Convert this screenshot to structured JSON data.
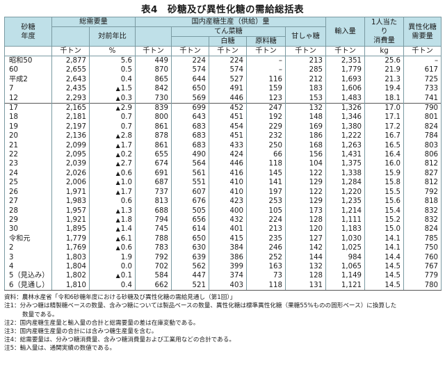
{
  "title": "表4　砂糖及び異性化糖の需給総括表",
  "headers": {
    "year": "砂糖\n年度",
    "demand": "総需要量",
    "yoy": "対前年比",
    "domestic": "国内産糖生産（供給）量",
    "beet": "てん菜糖",
    "white": "白糖",
    "raw": "原料糖",
    "cane": "甘しゃ糖",
    "imports": "輸入量",
    "percap": "1人当たり\n消費量",
    "hfcs": "異性化糖\n需要量"
  },
  "units": [
    "千トン",
    "%",
    "千トン",
    "千トン",
    "千トン",
    "千トン",
    "千トン",
    "千トン",
    "kg",
    "千トン"
  ],
  "group1": [
    {
      "year": "昭和50",
      "demand": "2,877",
      "yoy_neg": false,
      "yoy": "5.6",
      "domestic": "449",
      "beet": "224",
      "white": "224",
      "raw": "–",
      "cane": "213",
      "imports": "2,351",
      "percap": "25.6",
      "hfcs": "–"
    },
    {
      "year": "60",
      "demand": "2,655",
      "yoy_neg": false,
      "yoy": "0.5",
      "domestic": "870",
      "beet": "574",
      "white": "574",
      "raw": "–",
      "cane": "285",
      "imports": "1,779",
      "percap": "21.9",
      "hfcs": "617"
    },
    {
      "year": "平成2",
      "demand": "2,643",
      "yoy_neg": false,
      "yoy": "0.4",
      "domestic": "865",
      "beet": "644",
      "white": "527",
      "raw": "116",
      "cane": "212",
      "imports": "1,693",
      "percap": "21.3",
      "hfcs": "725"
    },
    {
      "year": "7",
      "demand": "2,435",
      "yoy_neg": true,
      "yoy": "1.5",
      "domestic": "842",
      "beet": "650",
      "white": "491",
      "raw": "159",
      "cane": "183",
      "imports": "1,606",
      "percap": "19.4",
      "hfcs": "733"
    },
    {
      "year": "12",
      "demand": "2,293",
      "yoy_neg": true,
      "yoy": "0.3",
      "domestic": "730",
      "beet": "569",
      "white": "446",
      "raw": "123",
      "cane": "153",
      "imports": "1,483",
      "percap": "18.1",
      "hfcs": "741"
    }
  ],
  "group2": [
    {
      "year": "17",
      "demand": "2,165",
      "yoy_neg": true,
      "yoy": "2.9",
      "domestic": "839",
      "beet": "699",
      "white": "452",
      "raw": "247",
      "cane": "132",
      "imports": "1,326",
      "percap": "17.0",
      "hfcs": "790"
    },
    {
      "year": "18",
      "demand": "2,181",
      "yoy_neg": false,
      "yoy": "0.7",
      "domestic": "800",
      "beet": "643",
      "white": "451",
      "raw": "192",
      "cane": "148",
      "imports": "1,346",
      "percap": "17.1",
      "hfcs": "801"
    },
    {
      "year": "19",
      "demand": "2,197",
      "yoy_neg": false,
      "yoy": "0.7",
      "domestic": "861",
      "beet": "683",
      "white": "454",
      "raw": "229",
      "cane": "169",
      "imports": "1,380",
      "percap": "17.2",
      "hfcs": "824"
    },
    {
      "year": "20",
      "demand": "2,136",
      "yoy_neg": true,
      "yoy": "2.8",
      "domestic": "878",
      "beet": "683",
      "white": "451",
      "raw": "232",
      "cane": "186",
      "imports": "1,222",
      "percap": "16.7",
      "hfcs": "784"
    },
    {
      "year": "21",
      "demand": "2,099",
      "yoy_neg": true,
      "yoy": "1.7",
      "domestic": "861",
      "beet": "683",
      "white": "433",
      "raw": "250",
      "cane": "168",
      "imports": "1,263",
      "percap": "16.5",
      "hfcs": "803"
    },
    {
      "year": "22",
      "demand": "2,095",
      "yoy_neg": true,
      "yoy": "0.2",
      "domestic": "655",
      "beet": "490",
      "white": "424",
      "raw": "66",
      "cane": "156",
      "imports": "1,431",
      "percap": "16.4",
      "hfcs": "806"
    },
    {
      "year": "23",
      "demand": "2,039",
      "yoy_neg": true,
      "yoy": "2.7",
      "domestic": "674",
      "beet": "564",
      "white": "446",
      "raw": "118",
      "cane": "104",
      "imports": "1,375",
      "percap": "16.0",
      "hfcs": "812"
    },
    {
      "year": "24",
      "demand": "2,026",
      "yoy_neg": true,
      "yoy": "0.6",
      "domestic": "691",
      "beet": "561",
      "white": "416",
      "raw": "145",
      "cane": "122",
      "imports": "1,338",
      "percap": "15.9",
      "hfcs": "827"
    },
    {
      "year": "25",
      "demand": "2,006",
      "yoy_neg": true,
      "yoy": "1.0",
      "domestic": "687",
      "beet": "551",
      "white": "410",
      "raw": "141",
      "cane": "129",
      "imports": "1,284",
      "percap": "15.8",
      "hfcs": "812"
    },
    {
      "year": "26",
      "demand": "1,971",
      "yoy_neg": true,
      "yoy": "1.7",
      "domestic": "737",
      "beet": "607",
      "white": "410",
      "raw": "197",
      "cane": "122",
      "imports": "1,220",
      "percap": "15.5",
      "hfcs": "792"
    },
    {
      "year": "27",
      "demand": "1,983",
      "yoy_neg": false,
      "yoy": "0.6",
      "domestic": "813",
      "beet": "676",
      "white": "423",
      "raw": "253",
      "cane": "129",
      "imports": "1,235",
      "percap": "15.6",
      "hfcs": "818"
    },
    {
      "year": "28",
      "demand": "1,957",
      "yoy_neg": true,
      "yoy": "1.3",
      "domestic": "688",
      "beet": "505",
      "white": "400",
      "raw": "105",
      "cane": "173",
      "imports": "1,214",
      "percap": "15.4",
      "hfcs": "832"
    },
    {
      "year": "29",
      "demand": "1,921",
      "yoy_neg": true,
      "yoy": "1.8",
      "domestic": "794",
      "beet": "656",
      "white": "432",
      "raw": "224",
      "cane": "128",
      "imports": "1,111",
      "percap": "15.2",
      "hfcs": "832"
    },
    {
      "year": "30",
      "demand": "1,895",
      "yoy_neg": true,
      "yoy": "1.4",
      "domestic": "745",
      "beet": "614",
      "white": "401",
      "raw": "213",
      "cane": "120",
      "imports": "1,183",
      "percap": "15.0",
      "hfcs": "824"
    },
    {
      "year": "令和元",
      "demand": "1,779",
      "yoy_neg": true,
      "yoy": "6.1",
      "domestic": "788",
      "beet": "650",
      "white": "415",
      "raw": "235",
      "cane": "127",
      "imports": "1,030",
      "percap": "14.1",
      "hfcs": "785"
    },
    {
      "year": "2",
      "demand": "1,769",
      "yoy_neg": true,
      "yoy": "0.6",
      "domestic": "783",
      "beet": "630",
      "white": "384",
      "raw": "246",
      "cane": "142",
      "imports": "1,025",
      "percap": "14.1",
      "hfcs": "750"
    },
    {
      "year": "3",
      "demand": "1,803",
      "yoy_neg": false,
      "yoy": "1.9",
      "domestic": "792",
      "beet": "639",
      "white": "386",
      "raw": "252",
      "cane": "144",
      "imports": "984",
      "percap": "14.4",
      "hfcs": "760"
    },
    {
      "year": "4",
      "demand": "1,804",
      "yoy_neg": false,
      "yoy": "0.0",
      "domestic": "702",
      "beet": "562",
      "white": "399",
      "raw": "163",
      "cane": "132",
      "imports": "1,065",
      "percap": "14.5",
      "hfcs": "767"
    },
    {
      "year": "5（見込み）",
      "demand": "1,802",
      "yoy_neg": true,
      "yoy": "0.1",
      "domestic": "584",
      "beet": "447",
      "white": "374",
      "raw": "73",
      "cane": "128",
      "imports": "1,149",
      "percap": "14.5",
      "hfcs": "779"
    },
    {
      "year": "6（見通し）",
      "demand": "1,810",
      "yoy_neg": false,
      "yoy": "0.4",
      "domestic": "662",
      "beet": "521",
      "white": "403",
      "raw": "118",
      "cane": "131",
      "imports": "1,121",
      "percap": "14.5",
      "hfcs": "780"
    }
  ],
  "neg_marker": "▲",
  "notes": [
    {
      "text": "資料：農林水産省「令和6砂糖年度における砂糖及び異性化糖の需給見通し（第1回）」",
      "indent": false
    },
    {
      "text": "注1：分みつ糖は精製糖ベースの数量、含みつ糖については製品ベースの数量、異性化糖は標準異性化糖（果糖55%ものの固形ベース）に換算した",
      "indent": false
    },
    {
      "text": "数量である。",
      "indent": true
    },
    {
      "text": "注2：国内産糖生産量と輸入量の合計と総需要量の差は在庫変動である。",
      "indent": false
    },
    {
      "text": "注3：国内産糖生産量の合計には含みつ糖生産量を含む。",
      "indent": false
    },
    {
      "text": "注4：総需要量は、分みつ糖消費量、含みつ糖消費量および工業用などの合計である。",
      "indent": false
    },
    {
      "text": "注5：輸入量は、通関実績の数値である。",
      "indent": false
    }
  ]
}
